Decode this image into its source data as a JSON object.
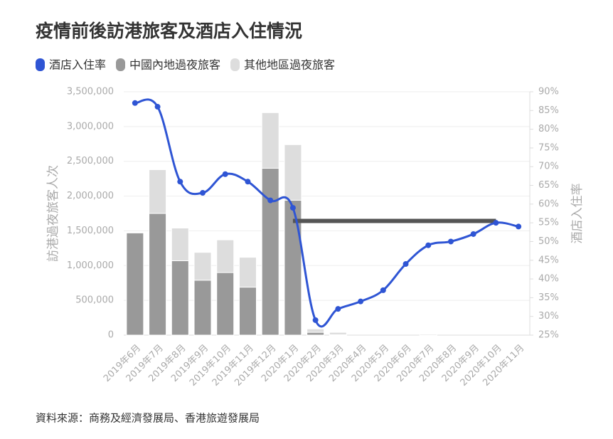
{
  "chart_data": {
    "type": "bar",
    "title": "疫情前後訪港旅客及酒店入住情況",
    "y_label": "訪港過夜旅客人次",
    "y2_label": "酒店入住率",
    "source": "資料來源：商務及經濟發展局、香港旅遊發展局",
    "categories": [
      "2019年6月",
      "2019年7月",
      "2019年8月",
      "2019年9月",
      "2019年10月",
      "2019年11月",
      "2019年12月",
      "2020年1月",
      "2020年2月",
      "2020年3月",
      "2020年4月",
      "2020年5月",
      "2020年6月",
      "2020年7月",
      "2020年8月",
      "2020年9月",
      "2020年10月",
      "2020年11月"
    ],
    "series": [
      {
        "name": "酒店入住率",
        "type": "line",
        "axis": "y2",
        "color": "#2f55d4",
        "values": [
          87,
          86,
          66,
          63,
          68,
          66,
          61,
          59,
          29,
          32,
          34,
          37,
          44,
          49,
          50,
          52,
          55,
          54
        ]
      },
      {
        "name": "中國內地過夜旅客",
        "type": "bar",
        "color": "#999999",
        "values": [
          1470000,
          1750000,
          1070000,
          790000,
          900000,
          690000,
          2400000,
          1940000,
          40000,
          5000,
          0,
          0,
          0,
          0,
          0,
          0,
          0,
          0
        ]
      },
      {
        "name": "其他地區過夜旅客",
        "type": "bar",
        "color": "#dddddd",
        "values": [
          0,
          630000,
          470000,
          400000,
          470000,
          430000,
          800000,
          800000,
          50000,
          35000,
          0,
          0,
          0,
          15000,
          0,
          0,
          0,
          0
        ]
      }
    ],
    "reference_line": {
      "y2": 55.5,
      "from": 7,
      "to": 16,
      "color": "#555555"
    },
    "ylim": [
      0,
      3500000
    ],
    "yticks": [
      0,
      {
        "value": 500000,
        "label": "500,000"
      },
      {
        "value": 1000000,
        "label": "1,000,000"
      },
      {
        "value": 1500000,
        "label": "1,500,000"
      },
      {
        "value": 2000000,
        "label": "2,000,000"
      },
      {
        "value": 2500000,
        "label": "2,500,000"
      },
      {
        "value": 3000000,
        "label": "3,000,000"
      },
      {
        "value": 3500000,
        "label": "3,500,000"
      }
    ],
    "y2lim": [
      25,
      90
    ],
    "y2ticks": [
      {
        "value": 25,
        "label": "25%"
      },
      {
        "value": 30,
        "label": "30%"
      },
      {
        "value": 35,
        "label": "35%"
      },
      {
        "value": 40,
        "label": "40%"
      },
      {
        "value": 45,
        "label": "45%"
      },
      {
        "value": 50,
        "label": "50%"
      },
      {
        "value": 55,
        "label": "55%"
      },
      {
        "value": 60,
        "label": "60%"
      },
      {
        "value": 65,
        "label": "65%"
      },
      {
        "value": 70,
        "label": "70%"
      },
      {
        "value": 75,
        "label": "75%"
      },
      {
        "value": 80,
        "label": "80%"
      },
      {
        "value": 85,
        "label": "85%"
      },
      {
        "value": 90,
        "label": "90%"
      }
    ],
    "grid": true
  }
}
